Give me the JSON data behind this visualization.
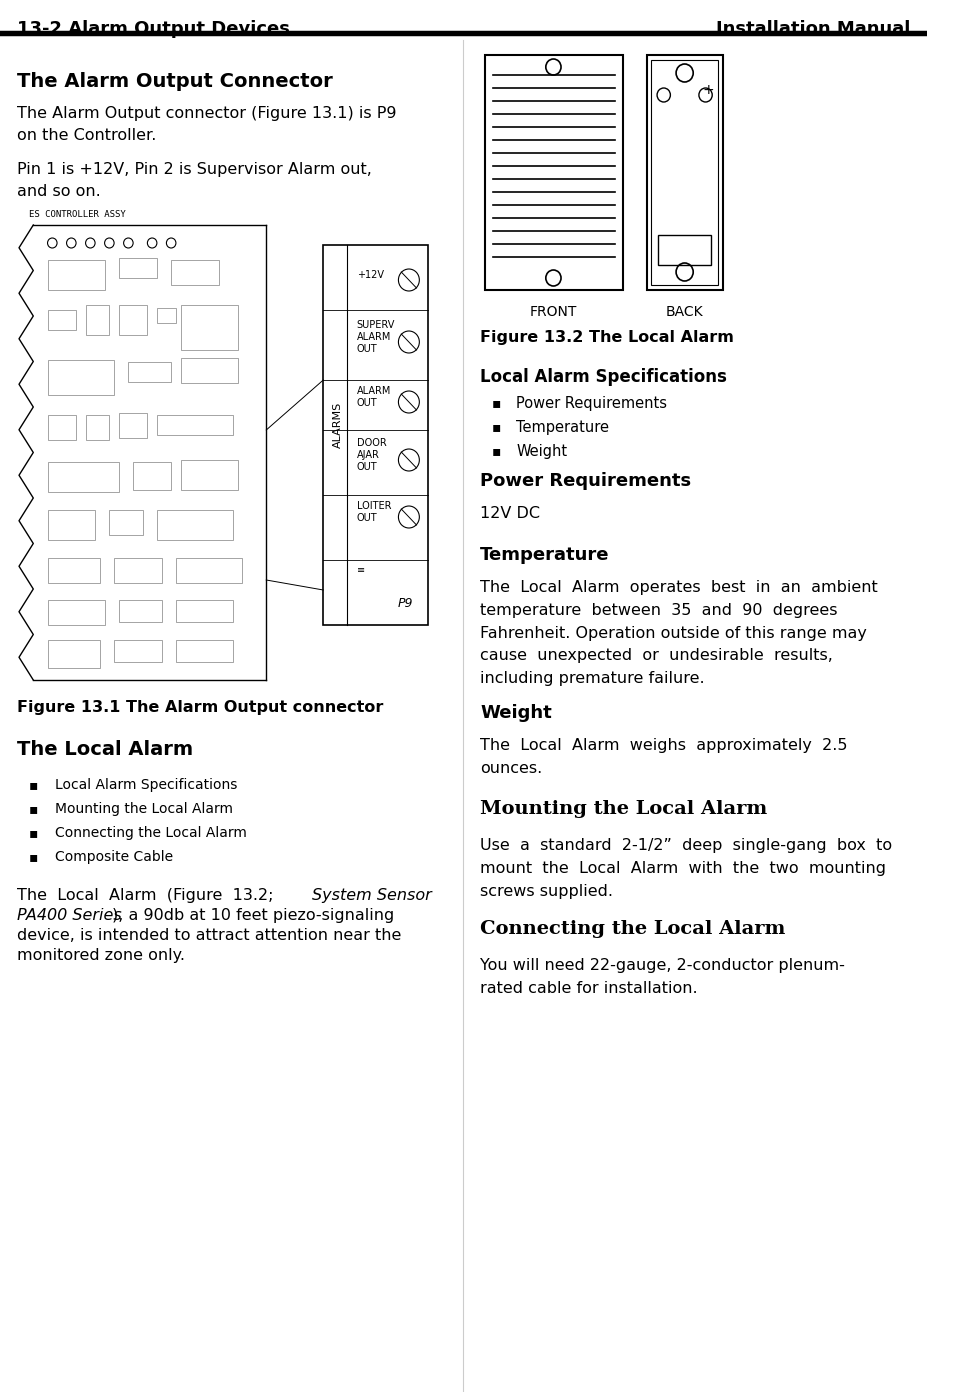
{
  "header_left": "13-2 Alarm Output Devices",
  "header_right": "Installation Manual",
  "bg_color": "#ffffff",
  "text_color": "#000000",
  "header_bg": "#ffffff",
  "section1_title": "The Alarm Output Connector",
  "section1_para1": "The Alarm Output connector (Figure 13.1) is P9\non the Controller.",
  "section1_para2": "Pin 1 is +12V, Pin 2 is Supervisor Alarm out,\nand so on.",
  "fig131_caption": "Figure 13.1 The Alarm Output connector",
  "section2_title": "The Local Alarm",
  "section2_bullets": [
    "Local Alarm Specifications",
    "Mounting the Local Alarm",
    "Connecting the Local Alarm",
    "Composite Cable"
  ],
  "section2_para": "The  Local  Alarm  (Figure  13.2;  System Sensor PA400 Series), a 90db at 10 feet piezo-signaling device, is intended to attract attention near the monitored zone only.",
  "fig132_caption": "Figure 13.2 The Local Alarm",
  "right_col_title1": "Local Alarm Specifications",
  "right_col_bullets1": [
    "Power Requirements",
    "Temperature",
    "Weight"
  ],
  "right_col_title2": "Power Requirements",
  "right_col_para2": "12V DC",
  "right_col_title3": "Temperature",
  "right_col_para3": "The  Local  Alarm  operates  best  in  an  ambient\ntemperature  between  35  and  90  degrees\nFahrenheit. Operation outside of this range may\ncause  unexpected  or  undesirable  results,\nincluding premature failure.",
  "right_col_title4": "Weight",
  "right_col_para4": "The  Local  Alarm  weighs  approximately  2.5\nounces.",
  "right_col_title5": "Mounting the Local Alarm",
  "right_col_para5": "Use  a  standard  2-1/2”  deep  single-gang  box  to\nmount  the  Local  Alarm  with  the  two  mounting\nscrews supplied.",
  "right_col_title6": "Connecting the Local Alarm",
  "right_col_para6": "You will need 22-gauge, 2-conductor plenum-\nrated cable for installation."
}
